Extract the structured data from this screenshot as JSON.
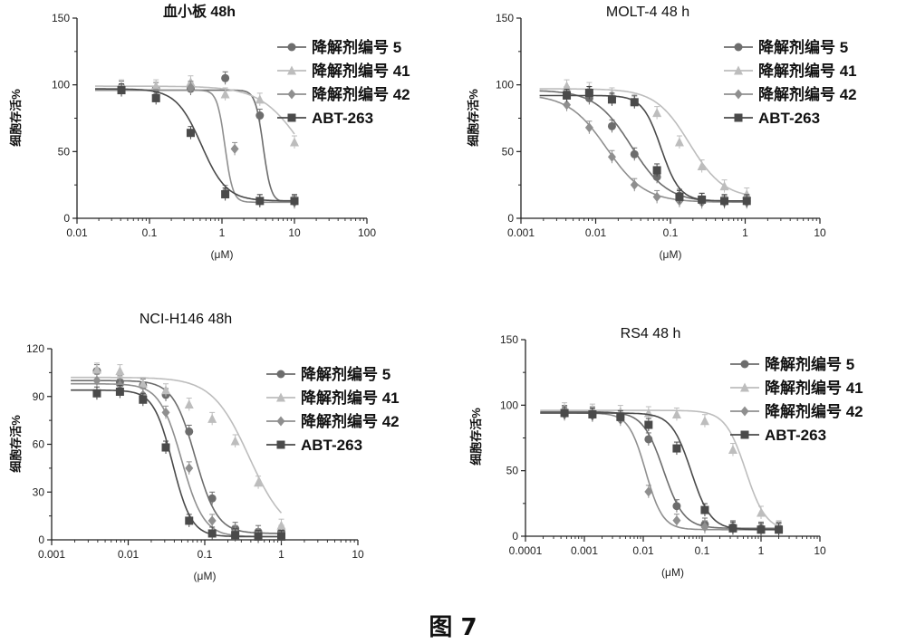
{
  "figure_caption": "图 7",
  "colors": {
    "s5": "#6d6d6d",
    "s41": "#bdbdbd",
    "s42": "#8f8f8f",
    "s263": "#4a4a4a",
    "axis": "#222222"
  },
  "chart_data": [
    {
      "type": "scatter",
      "title": "血小板 48h",
      "xlabel": "(μM)",
      "ylabel": "细胞存活%",
      "x_scale": "log",
      "xlim": [
        0.01,
        100
      ],
      "ylim": [
        0,
        150
      ],
      "x_ticks": [
        0.01,
        0.1,
        1,
        10,
        100
      ],
      "x_tick_labels": [
        "0.01",
        "0.1",
        "1",
        "10",
        "100"
      ],
      "y_ticks": [
        0,
        50,
        100,
        150
      ],
      "y_tick_labels": [
        "0",
        "50",
        "100",
        "150"
      ],
      "legend": [
        "降解剂编号 5",
        "降解剂编号 41",
        "降解剂编号 42",
        "ABT-263"
      ],
      "series": [
        {
          "name": "降解剂编号 5",
          "marker": "circle",
          "color_key": "s5",
          "x": [
            0.041,
            0.123,
            0.37,
            1.11,
            3.33,
            10
          ],
          "y": [
            98,
            97,
            97,
            105,
            77,
            13
          ],
          "fit": {
            "top": 96,
            "bottom": 12,
            "ec50": 3.7,
            "hill": 8
          }
        },
        {
          "name": "降解剂编号 41",
          "marker": "triangle",
          "color_key": "s41",
          "x": [
            0.041,
            0.123,
            0.37,
            1.11,
            3.33,
            10
          ],
          "y": [
            99,
            99,
            102,
            93,
            89,
            57
          ],
          "fit": {
            "top": 99,
            "bottom": 10,
            "ec50": 13,
            "hill": 1.5
          }
        },
        {
          "name": "降解剂编号 42",
          "marker": "diamond",
          "color_key": "s42",
          "x": [
            0.041,
            0.123,
            0.37,
            1.11,
            1.5,
            3.33,
            10
          ],
          "y": [
            96,
            92,
            98,
            20,
            52,
            13,
            12
          ],
          "fit": {
            "top": 96,
            "bottom": 12,
            "ec50": 1.1,
            "hill": 8
          }
        },
        {
          "name": "ABT-263",
          "marker": "square",
          "color_key": "s263",
          "x": [
            0.041,
            0.123,
            0.37,
            1.11,
            3.33,
            10
          ],
          "y": [
            96,
            90,
            64,
            18,
            13,
            13
          ],
          "fit": {
            "top": 97,
            "bottom": 13,
            "ec50": 0.52,
            "hill": 2.5
          }
        }
      ]
    },
    {
      "type": "scatter",
      "title": "MOLT-4 48 h",
      "xlabel": "(μM)",
      "ylabel": "细胞存活%",
      "x_scale": "log",
      "xlim": [
        0.001,
        10
      ],
      "ylim": [
        0,
        150
      ],
      "x_ticks": [
        0.001,
        0.01,
        0.1,
        1,
        10
      ],
      "x_tick_labels": [
        "0.001",
        "0.01",
        "0.1",
        "1",
        "10"
      ],
      "y_ticks": [
        0,
        50,
        100,
        150
      ],
      "y_tick_labels": [
        "0",
        "50",
        "100",
        "150"
      ],
      "legend": [
        "降解剂编号 5",
        "降解剂编号 41",
        "降解剂编号 42",
        "ABT-263"
      ],
      "series": [
        {
          "name": "降解剂编号 5",
          "marker": "circle",
          "color_key": "s5",
          "x": [
            0.0041,
            0.0082,
            0.0165,
            0.033,
            0.066,
            0.132,
            0.263,
            0.527,
            1.05
          ],
          "y": [
            94,
            90,
            69,
            48,
            31,
            17,
            14,
            13,
            13
          ],
          "fit": {
            "top": 96,
            "bottom": 12,
            "ec50": 0.03,
            "hill": 1.8
          }
        },
        {
          "name": "降解剂编号 41",
          "marker": "triangle",
          "color_key": "s41",
          "x": [
            0.0041,
            0.0082,
            0.0165,
            0.033,
            0.066,
            0.132,
            0.263,
            0.527,
            1.05
          ],
          "y": [
            99,
            97,
            93,
            88,
            79,
            57,
            39,
            24,
            18
          ],
          "fit": {
            "top": 97,
            "bottom": 15,
            "ec50": 0.18,
            "hill": 1.9
          }
        },
        {
          "name": "降解剂编号 42",
          "marker": "diamond",
          "color_key": "s42",
          "x": [
            0.0041,
            0.0082,
            0.0165,
            0.033,
            0.066,
            0.132,
            0.263,
            0.527,
            1.05
          ],
          "y": [
            85,
            68,
            46,
            25,
            16,
            13,
            12,
            12,
            12
          ],
          "fit": {
            "top": 93,
            "bottom": 12,
            "ec50": 0.014,
            "hill": 1.7
          }
        },
        {
          "name": "ABT-263",
          "marker": "square",
          "color_key": "s263",
          "x": [
            0.0041,
            0.0082,
            0.0165,
            0.033,
            0.066,
            0.132,
            0.263,
            0.527,
            1.05
          ],
          "y": [
            92,
            94,
            89,
            87,
            36,
            16,
            14,
            13,
            13
          ],
          "fit": {
            "top": 92,
            "bottom": 13,
            "ec50": 0.075,
            "hill": 3.5
          }
        }
      ]
    },
    {
      "type": "scatter",
      "title": "NCI-H146  48h",
      "xlabel": "(μM)",
      "ylabel": "细胞存活%",
      "x_scale": "log",
      "xlim": [
        0.001,
        10
      ],
      "ylim": [
        0,
        120
      ],
      "x_ticks": [
        0.001,
        0.01,
        0.1,
        1,
        10
      ],
      "x_tick_labels": [
        "0.001",
        "0.01",
        "0.1",
        "1",
        "10"
      ],
      "y_ticks": [
        0,
        30,
        60,
        90,
        120
      ],
      "y_tick_labels": [
        "0",
        "30",
        "60",
        "90",
        "120"
      ],
      "legend": [
        "降解剂编号 5",
        "降解剂编号 41",
        "降解剂编号 42",
        "ABT-263"
      ],
      "series": [
        {
          "name": "降解剂编号 5",
          "marker": "circle",
          "color_key": "s5",
          "x": [
            0.0039,
            0.0078,
            0.0156,
            0.031,
            0.0625,
            0.125,
            0.25,
            0.5,
            1.0
          ],
          "y": [
            106,
            99,
            97,
            91,
            68,
            26,
            7,
            5,
            5
          ],
          "fit": {
            "top": 100,
            "bottom": 4,
            "ec50": 0.075,
            "hill": 3
          }
        },
        {
          "name": "降解剂编号 41",
          "marker": "triangle",
          "color_key": "s41",
          "x": [
            0.0039,
            0.0078,
            0.0156,
            0.031,
            0.0625,
            0.125,
            0.25,
            0.5,
            1.0
          ],
          "y": [
            107,
            106,
            98,
            94,
            85,
            76,
            62,
            36,
            9
          ],
          "fit": {
            "top": 102,
            "bottom": 2,
            "ec50": 0.38,
            "hill": 1.8
          }
        },
        {
          "name": "降解剂编号 42",
          "marker": "diamond",
          "color_key": "s42",
          "x": [
            0.0039,
            0.0078,
            0.0156,
            0.031,
            0.0625,
            0.125,
            0.25,
            0.5,
            1.0
          ],
          "y": [
            100,
            97,
            91,
            80,
            45,
            12,
            5,
            3,
            2
          ],
          "fit": {
            "top": 98,
            "bottom": 2,
            "ec50": 0.05,
            "hill": 3
          }
        },
        {
          "name": "ABT-263",
          "marker": "square",
          "color_key": "s263",
          "x": [
            0.0039,
            0.0078,
            0.0156,
            0.031,
            0.0625,
            0.125,
            0.25,
            0.5,
            1.0
          ],
          "y": [
            92,
            93,
            88,
            58,
            12,
            4,
            3,
            2,
            2
          ],
          "fit": {
            "top": 94,
            "bottom": 2,
            "ec50": 0.038,
            "hill": 3.5
          }
        }
      ]
    },
    {
      "type": "scatter",
      "title": "RS4 48 h",
      "xlabel": "(μM)",
      "ylabel": "细胞存活%",
      "x_scale": "log",
      "xlim": [
        0.0001,
        10
      ],
      "ylim": [
        0,
        150
      ],
      "x_ticks": [
        0.0001,
        0.001,
        0.01,
        0.1,
        1,
        10
      ],
      "x_tick_labels": [
        "0.0001",
        "0.001",
        "0.01",
        "0.1",
        "1",
        "10"
      ],
      "y_ticks": [
        0,
        50,
        100,
        150
      ],
      "y_tick_labels": [
        "0",
        "50",
        "100",
        "150"
      ],
      "legend": [
        "降解剂编号 5",
        "降解剂编号 41",
        "降解剂编号 42",
        "ABT-263"
      ],
      "series": [
        {
          "name": "降解剂编号 5",
          "marker": "circle",
          "color_key": "s5",
          "x": [
            0.00046,
            0.00137,
            0.0041,
            0.0123,
            0.037,
            0.111,
            0.333,
            1.0,
            2.0
          ],
          "y": [
            95,
            94,
            91,
            74,
            23,
            9,
            7,
            6,
            6
          ],
          "fit": {
            "top": 95,
            "bottom": 6,
            "ec50": 0.022,
            "hill": 2.5
          }
        },
        {
          "name": "降解剂编号 41",
          "marker": "triangle",
          "color_key": "s41",
          "x": [
            0.00046,
            0.00137,
            0.0041,
            0.0123,
            0.037,
            0.111,
            0.333,
            1.0,
            2.0
          ],
          "y": [
            97,
            96,
            95,
            94,
            93,
            88,
            66,
            18,
            7
          ],
          "fit": {
            "top": 96,
            "bottom": 4,
            "ec50": 0.55,
            "hill": 2.5
          }
        },
        {
          "name": "降解剂编号 42",
          "marker": "diamond",
          "color_key": "s42",
          "x": [
            0.00046,
            0.00137,
            0.0041,
            0.0123,
            0.037,
            0.111,
            0.333,
            1.0,
            2.0
          ],
          "y": [
            93,
            92,
            89,
            34,
            12,
            7,
            6,
            5,
            5
          ],
          "fit": {
            "top": 94,
            "bottom": 5,
            "ec50": 0.011,
            "hill": 3
          }
        },
        {
          "name": "ABT-263",
          "marker": "square",
          "color_key": "s263",
          "x": [
            0.00046,
            0.00137,
            0.0041,
            0.0123,
            0.037,
            0.111,
            0.333,
            1.0,
            2.0
          ],
          "y": [
            94,
            93,
            91,
            85,
            67,
            20,
            6,
            5,
            5
          ],
          "fit": {
            "top": 94,
            "bottom": 5,
            "ec50": 0.065,
            "hill": 2.6
          }
        }
      ]
    }
  ]
}
